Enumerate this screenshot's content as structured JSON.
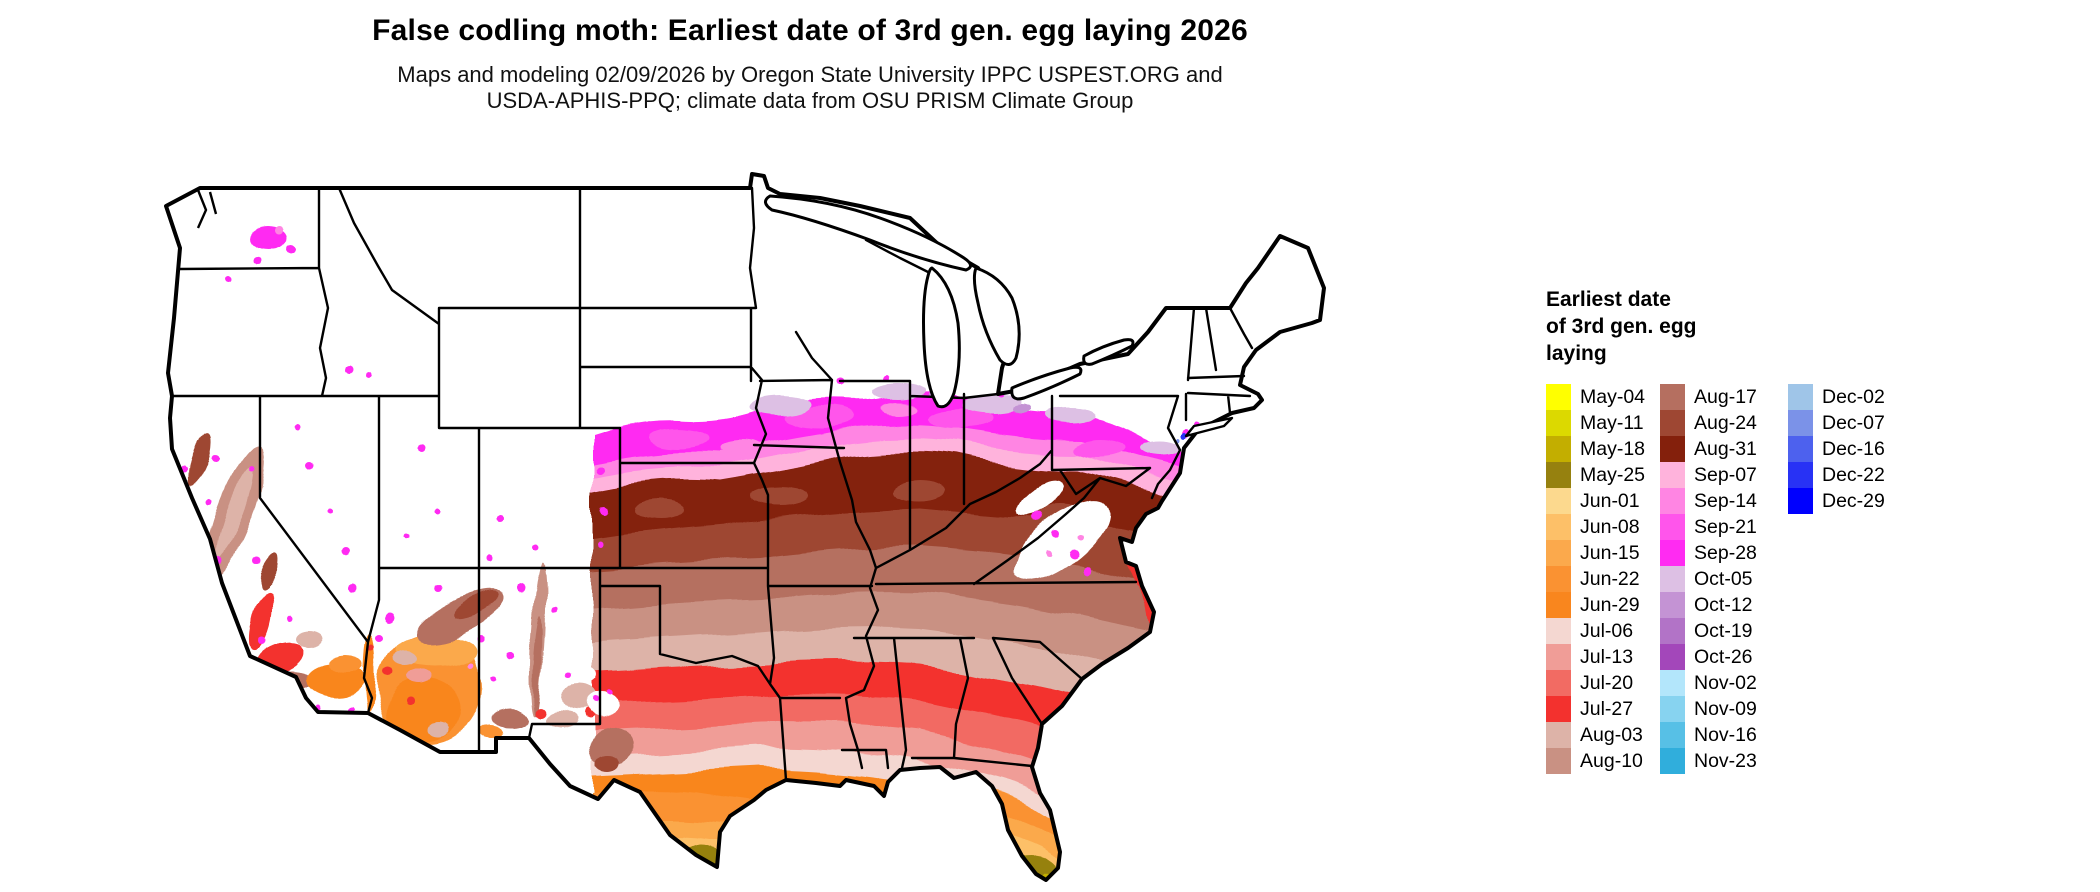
{
  "header": {
    "title": "False codling moth: Earliest date of 3rd gen. egg laying 2026",
    "subtitle1": "Maps and modeling 02/09/2026 by Oregon State University IPPC USPEST.ORG and",
    "subtitle2": "USDA-APHIS-PPQ; climate data from OSU PRISM Climate Group"
  },
  "legend": {
    "title_line1": "Earliest date",
    "title_line2": "of 3rd gen. egg",
    "title_line3": "laying",
    "columns": [
      [
        {
          "label": "May-04",
          "color": "#FFFF00"
        },
        {
          "label": "May-11",
          "color": "#DCD900"
        },
        {
          "label": "May-18",
          "color": "#C3AE00"
        },
        {
          "label": "May-25",
          "color": "#96810F"
        },
        {
          "label": "Jun-01",
          "color": "#FCD98E"
        },
        {
          "label": "Jun-08",
          "color": "#FDC068"
        },
        {
          "label": "Jun-15",
          "color": "#FBA94C"
        },
        {
          "label": "Jun-22",
          "color": "#FA9232"
        },
        {
          "label": "Jun-29",
          "color": "#F9861E"
        },
        {
          "label": "Jul-06",
          "color": "#F4D7D1"
        },
        {
          "label": "Jul-13",
          "color": "#F09D97"
        },
        {
          "label": "Jul-20",
          "color": "#F26B63"
        },
        {
          "label": "Jul-27",
          "color": "#F3312E"
        },
        {
          "label": "Aug-03",
          "color": "#DDB3A8"
        },
        {
          "label": "Aug-10",
          "color": "#C99183"
        }
      ],
      [
        {
          "label": "Aug-17",
          "color": "#B56F60"
        },
        {
          "label": "Aug-24",
          "color": "#9E4733"
        },
        {
          "label": "Aug-31",
          "color": "#84200C"
        },
        {
          "label": "Sep-07",
          "color": "#FFB3DC"
        },
        {
          "label": "Sep-14",
          "color": "#FF85E3"
        },
        {
          "label": "Sep-21",
          "color": "#FF55EB"
        },
        {
          "label": "Sep-28",
          "color": "#FF2BF2"
        },
        {
          "label": "Oct-05",
          "color": "#DDC0E4"
        },
        {
          "label": "Oct-12",
          "color": "#C493D4"
        },
        {
          "label": "Oct-19",
          "color": "#B273C7"
        },
        {
          "label": "Oct-26",
          "color": "#A347BA"
        },
        {
          "label": "Nov-02",
          "color": "#B3E6FB"
        },
        {
          "label": "Nov-09",
          "color": "#87D3F0"
        },
        {
          "label": "Nov-16",
          "color": "#57C0E6"
        },
        {
          "label": "Nov-23",
          "color": "#30AEDC"
        }
      ],
      [
        {
          "label": "Dec-02",
          "color": "#9FC5E8"
        },
        {
          "label": "Dec-07",
          "color": "#7B92E8"
        },
        {
          "label": "Dec-16",
          "color": "#4D61EE"
        },
        {
          "label": "Dec-22",
          "color": "#2832F5"
        },
        {
          "label": "Dec-29",
          "color": "#0000FE"
        }
      ]
    ]
  }
}
